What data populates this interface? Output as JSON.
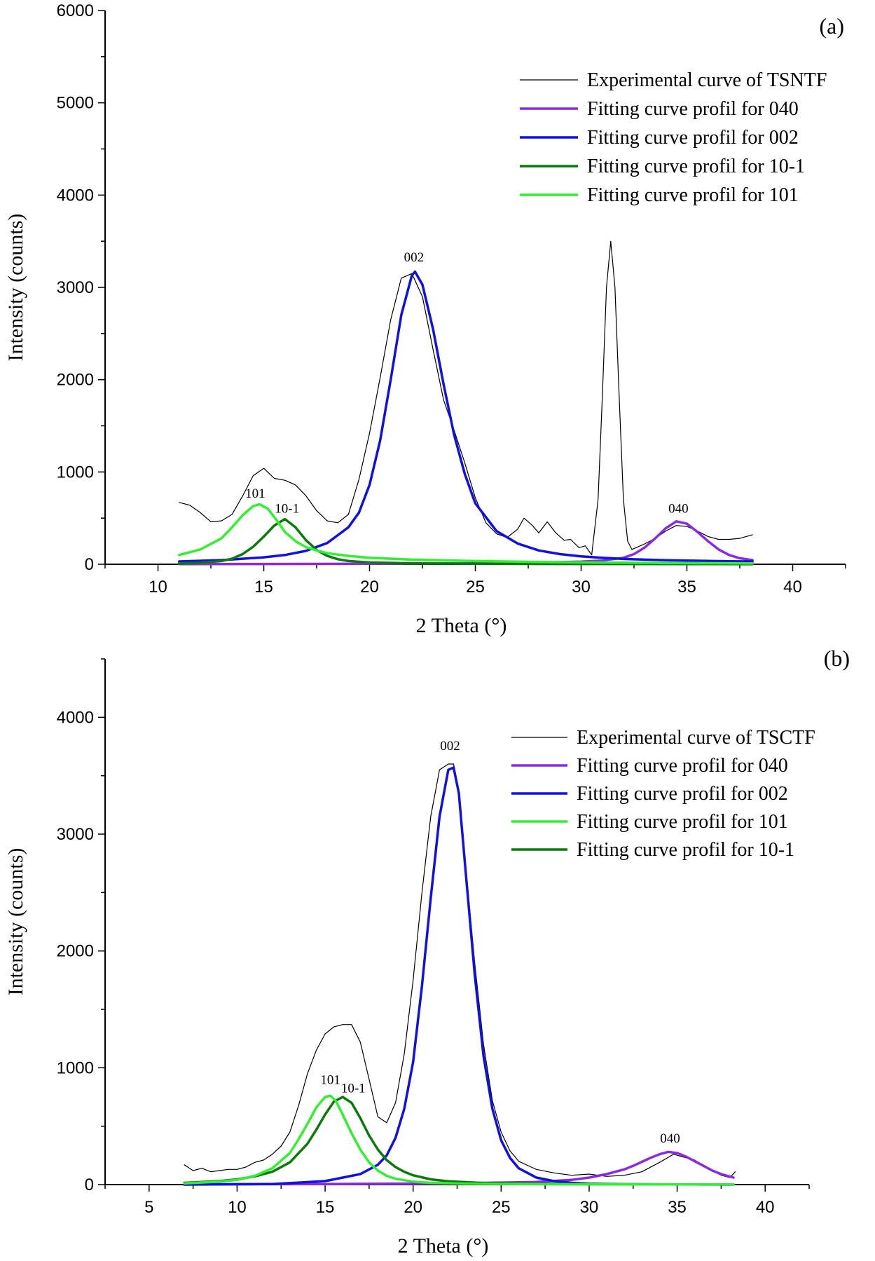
{
  "chart_data": [
    {
      "type": "line",
      "panel_label": "(a)",
      "xlabel": "2 Theta (°)",
      "ylabel": "Intensity (counts)",
      "xlim": [
        7.5,
        42.5
      ],
      "ylim": [
        0,
        6000
      ],
      "xticks": [
        10,
        15,
        20,
        25,
        30,
        35,
        40
      ],
      "yticks": [
        0,
        1000,
        2000,
        3000,
        4000,
        5000,
        6000
      ],
      "legend_position": "top-right",
      "legend": [
        {
          "label": "Experimental curve of TSNTF",
          "series": "experimental"
        },
        {
          "label": "Fitting curve profil for 040",
          "series": "fit040"
        },
        {
          "label": "Fitting curve profil for 002",
          "series": "fit002"
        },
        {
          "label": "Fitting curve profil for 10-1",
          "series": "fit10m1"
        },
        {
          "label": "Fitting curve profil for 101",
          "series": "fit101"
        }
      ],
      "annotations": [
        {
          "text": "002",
          "x": 22.1,
          "y": 3280
        },
        {
          "text": "101",
          "x": 14.6,
          "y": 720
        },
        {
          "text": "10-1",
          "x": 16.1,
          "y": 560
        },
        {
          "text": "040",
          "x": 34.6,
          "y": 560
        }
      ],
      "series": [
        {
          "name": "experimental",
          "color": "#000000",
          "width": 1.2,
          "x": [
            11.0,
            11.5,
            12.0,
            12.5,
            13.0,
            13.5,
            14.0,
            14.5,
            15.0,
            15.5,
            16.0,
            16.5,
            17.0,
            17.5,
            18.0,
            18.5,
            19.0,
            19.5,
            20.0,
            20.5,
            21.0,
            21.5,
            22.0,
            22.5,
            23.0,
            23.5,
            24.0,
            24.5,
            25.0,
            25.5,
            26.0,
            26.5,
            27.0,
            27.3,
            27.7,
            28.0,
            28.4,
            28.8,
            29.2,
            29.5,
            29.9,
            30.2,
            30.5,
            30.8,
            31.0,
            31.2,
            31.4,
            31.6,
            31.8,
            32.0,
            32.2,
            32.4,
            32.6,
            33.0,
            33.5,
            34.0,
            34.5,
            35.0,
            35.5,
            36.0,
            36.5,
            37.0,
            37.5,
            38.1
          ],
          "y": [
            670,
            640,
            560,
            460,
            470,
            540,
            740,
            960,
            1040,
            930,
            910,
            860,
            740,
            580,
            470,
            450,
            540,
            920,
            1420,
            2020,
            2650,
            3100,
            3150,
            2900,
            2330,
            1780,
            1450,
            1100,
            720,
            450,
            330,
            290,
            380,
            500,
            420,
            340,
            460,
            340,
            260,
            270,
            180,
            200,
            100,
            700,
            1800,
            3000,
            3500,
            3000,
            1800,
            700,
            250,
            160,
            180,
            220,
            280,
            360,
            420,
            410,
            360,
            300,
            270,
            270,
            280,
            320
          ]
        },
        {
          "name": "fit040",
          "color": "#8a2be2",
          "width": 3.5,
          "x": [
            11.0,
            15.0,
            20.0,
            25.0,
            28.0,
            30.0,
            31.0,
            32.0,
            32.5,
            33.0,
            33.5,
            34.0,
            34.5,
            35.0,
            35.5,
            36.0,
            36.5,
            37.0,
            37.5,
            38.1
          ],
          "y": [
            2,
            3,
            5,
            10,
            18,
            28,
            40,
            70,
            110,
            180,
            280,
            390,
            465,
            440,
            350,
            250,
            160,
            100,
            65,
            45
          ]
        },
        {
          "name": "fit002",
          "color": "#1010e0",
          "width": 3.5,
          "x": [
            11.0,
            13.0,
            15.0,
            16.0,
            17.0,
            18.0,
            19.0,
            19.5,
            20.0,
            20.5,
            21.0,
            21.5,
            22.0,
            22.15,
            22.5,
            23.0,
            23.5,
            24.0,
            24.5,
            25.0,
            26.0,
            27.0,
            28.0,
            29.0,
            30.0,
            31.0,
            32.0,
            33.0,
            34.0,
            35.0,
            36.0,
            37.0,
            38.1
          ],
          "y": [
            30,
            45,
            75,
            100,
            145,
            230,
            400,
            560,
            860,
            1340,
            2000,
            2700,
            3130,
            3170,
            3030,
            2550,
            1950,
            1400,
            980,
            660,
            360,
            225,
            150,
            110,
            85,
            70,
            58,
            50,
            44,
            40,
            36,
            33,
            30
          ]
        },
        {
          "name": "fit10m1",
          "color": "#0a7a0a",
          "width": 3.5,
          "x": [
            11.0,
            12.0,
            13.0,
            13.5,
            14.0,
            14.5,
            15.0,
            15.5,
            16.0,
            16.5,
            17.0,
            17.5,
            18.0,
            18.5,
            19.0,
            20.0,
            22.0,
            25.0,
            30.0,
            35.0,
            38.1
          ],
          "y": [
            10,
            15,
            35,
            60,
            110,
            190,
            300,
            420,
            490,
            400,
            260,
            155,
            90,
            55,
            35,
            20,
            10,
            5,
            3,
            2,
            1
          ]
        },
        {
          "name": "fit101",
          "color": "#33ee33",
          "width": 3.5,
          "x": [
            11.0,
            12.0,
            13.0,
            13.5,
            14.0,
            14.5,
            14.8,
            15.2,
            15.6,
            16.0,
            16.5,
            17.0,
            17.5,
            18.0,
            19.0,
            20.0,
            22.0,
            25.0,
            28.0,
            31.0,
            34.0,
            38.1
          ],
          "y": [
            100,
            160,
            280,
            400,
            530,
            630,
            650,
            600,
            480,
            350,
            250,
            185,
            150,
            120,
            90,
            70,
            50,
            35,
            25,
            18,
            14,
            10
          ]
        }
      ]
    },
    {
      "type": "line",
      "panel_label": "(b)",
      "xlabel": "2 Theta (°)",
      "ylabel": "Intensity (counts)",
      "xlim": [
        2.5,
        42.5
      ],
      "ylim": [
        0,
        4500
      ],
      "xticks": [
        5,
        10,
        15,
        20,
        25,
        30,
        35,
        40
      ],
      "yticks": [
        0,
        1000,
        2000,
        3000,
        4000
      ],
      "legend_position": "top-right",
      "legend": [
        {
          "label": "Experimental curve of TSCTF",
          "series": "experimental"
        },
        {
          "label": "Fitting curve profil for 040",
          "series": "fit040"
        },
        {
          "label": "Fitting curve profil for 002",
          "series": "fit002"
        },
        {
          "label": "Fitting curve profil for 101",
          "series": "fit101"
        },
        {
          "label": "Fitting curve profil for 10-1",
          "series": "fit10m1"
        }
      ],
      "annotations": [
        {
          "text": "002",
          "x": 22.1,
          "y": 3720
        },
        {
          "text": "101",
          "x": 15.3,
          "y": 860
        },
        {
          "text": "10-1",
          "x": 16.6,
          "y": 790
        },
        {
          "text": "040",
          "x": 34.6,
          "y": 360
        }
      ],
      "series": [
        {
          "name": "experimental",
          "color": "#000000",
          "width": 1.2,
          "x": [
            7.0,
            7.5,
            8.0,
            8.5,
            9.0,
            9.5,
            10.0,
            10.5,
            11.0,
            11.5,
            12.0,
            12.5,
            13.0,
            13.5,
            14.0,
            14.5,
            15.0,
            15.5,
            16.0,
            16.5,
            17.0,
            17.5,
            18.0,
            18.5,
            19.0,
            19.5,
            20.0,
            20.5,
            21.0,
            21.5,
            22.0,
            22.3,
            22.6,
            23.0,
            23.5,
            24.0,
            24.5,
            25.0,
            25.5,
            26.0,
            27.0,
            28.0,
            29.0,
            30.0,
            31.0,
            32.0,
            33.0,
            34.0,
            34.8,
            35.5,
            36.0,
            36.5,
            37.0,
            37.5,
            38.0,
            38.3
          ],
          "y": [
            170,
            120,
            140,
            110,
            120,
            130,
            130,
            150,
            190,
            210,
            260,
            330,
            450,
            680,
            950,
            1150,
            1290,
            1350,
            1370,
            1370,
            1220,
            900,
            580,
            530,
            700,
            1120,
            1750,
            2500,
            3150,
            3550,
            3600,
            3600,
            3350,
            2700,
            1900,
            1200,
            720,
            450,
            290,
            200,
            130,
            100,
            80,
            90,
            70,
            80,
            110,
            190,
            260,
            230,
            210,
            160,
            120,
            80,
            60,
            110
          ]
        },
        {
          "name": "fit040",
          "color": "#8a2be2",
          "width": 3.5,
          "x": [
            7.0,
            15.0,
            22.0,
            27.0,
            29.0,
            30.0,
            31.0,
            32.0,
            32.5,
            33.0,
            33.5,
            34.0,
            34.5,
            35.0,
            35.5,
            36.0,
            36.5,
            37.0,
            37.5,
            38.2
          ],
          "y": [
            3,
            5,
            10,
            22,
            40,
            60,
            90,
            130,
            160,
            195,
            230,
            260,
            280,
            270,
            240,
            200,
            160,
            120,
            90,
            60
          ]
        },
        {
          "name": "fit002",
          "color": "#1010e0",
          "width": 3.5,
          "x": [
            7.0,
            12.0,
            15.0,
            17.0,
            18.0,
            18.5,
            19.0,
            19.5,
            20.0,
            20.5,
            21.0,
            21.5,
            22.0,
            22.3,
            22.6,
            23.0,
            23.5,
            24.0,
            24.5,
            25.0,
            25.5,
            26.0,
            27.0,
            28.0,
            29.0,
            30.0,
            32.0,
            35.0,
            38.2
          ],
          "y": [
            0,
            5,
            30,
            90,
            170,
            250,
            400,
            650,
            1050,
            1700,
            2450,
            3150,
            3550,
            3570,
            3350,
            2650,
            1800,
            1100,
            650,
            380,
            230,
            140,
            60,
            30,
            15,
            8,
            3,
            1,
            0
          ]
        },
        {
          "name": "fit101",
          "color": "#33ee33",
          "width": 3.5,
          "x": [
            7.0,
            9.0,
            10.0,
            11.0,
            12.0,
            13.0,
            13.5,
            14.0,
            14.5,
            15.0,
            15.3,
            15.6,
            16.0,
            16.5,
            17.0,
            17.5,
            18.0,
            18.5,
            19.0,
            20.0,
            21.0,
            23.0,
            26.0,
            30.0,
            38.2
          ],
          "y": [
            10,
            25,
            40,
            75,
            140,
            270,
            390,
            520,
            660,
            750,
            760,
            720,
            600,
            440,
            300,
            190,
            120,
            75,
            50,
            25,
            15,
            8,
            4,
            2,
            1
          ]
        },
        {
          "name": "fit10m1",
          "color": "#0a7a0a",
          "width": 3.5,
          "x": [
            7.0,
            9.0,
            10.0,
            11.0,
            12.0,
            13.0,
            14.0,
            14.5,
            15.0,
            15.5,
            16.0,
            16.5,
            17.0,
            17.5,
            18.0,
            18.5,
            19.0,
            19.5,
            20.0,
            21.0,
            22.0,
            24.0,
            27.0,
            30.0,
            34.0,
            38.2
          ],
          "y": [
            15,
            30,
            45,
            70,
            110,
            190,
            350,
            470,
            600,
            710,
            750,
            700,
            570,
            420,
            300,
            210,
            150,
            110,
            80,
            45,
            28,
            14,
            7,
            4,
            2,
            1
          ]
        }
      ]
    }
  ]
}
